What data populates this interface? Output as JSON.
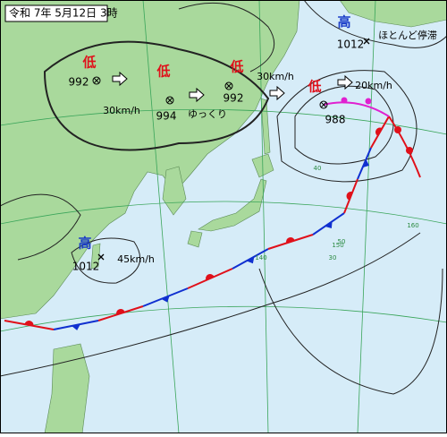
{
  "header": {
    "title": "令和 7年 5月12日 3時"
  },
  "systems": [
    {
      "kind": "低",
      "pressure": 992,
      "movement": "30km/h"
    },
    {
      "kind": "低",
      "pressure": 994,
      "movement": "ゆっくり"
    },
    {
      "kind": "低",
      "pressure": 992,
      "movement": "30km/h"
    },
    {
      "kind": "低",
      "pressure": 988,
      "movement": "20km/h"
    },
    {
      "kind": "高",
      "pressure": 1012,
      "movement": "ほとんど停滞"
    },
    {
      "kind": "高",
      "pressure": 1012,
      "movement": "45km/h"
    }
  ],
  "grid_labels": [
    "40",
    "30",
    "150",
    "160",
    "140",
    "50"
  ]
}
